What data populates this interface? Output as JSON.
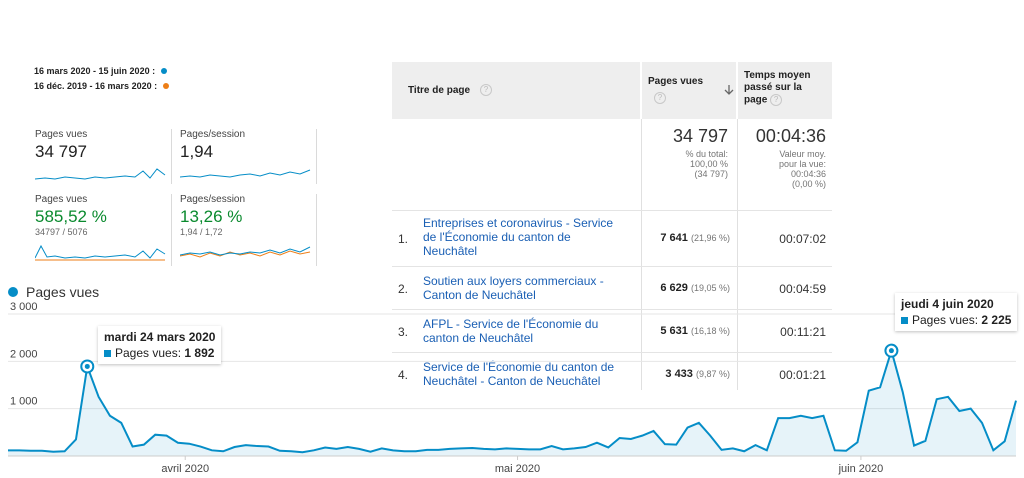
{
  "legend": {
    "range_current": "16 mars 2020 - 15 juin 2020 :",
    "range_previous": "16 déc. 2019 - 16 mars 2020 :",
    "color_current": "#058dc7",
    "color_previous": "#ed7e17"
  },
  "metrics": [
    {
      "label": "Pages vues",
      "value": "34 797",
      "sub": ""
    },
    {
      "label": "Pages/session",
      "value": "1,94",
      "sub": ""
    },
    {
      "label": "Pages vues",
      "value": "585,52 %",
      "sub": "34797 / 5076"
    },
    {
      "label": "Pages/session",
      "value": "13,26 %",
      "sub": "1,94 / 1,72"
    }
  ],
  "table": {
    "col_title": "Titre de page",
    "col_pageviews": "Pages vues",
    "col_time_line1": "Temps moyen",
    "col_time_line2": "passé sur la",
    "col_time_line3": "page",
    "sort_icon": "arrow-down-icon",
    "help_icon": "?",
    "totals": {
      "pageviews": "34 797",
      "pv_sub1": "% du total:",
      "pv_sub2": "100,00 %",
      "pv_sub3": "(34 797)",
      "time": "00:04:36",
      "time_sub1": "Valeur moy.",
      "time_sub2": "pour la vue:",
      "time_sub3": "00:04:36",
      "time_sub4": "(0,00 %)"
    },
    "rows": [
      {
        "n": "1.",
        "title_l1": "Entreprises et coronavirus - Service",
        "title_l2": "de l'Économie du canton de",
        "title_l3": "Neuchâtel",
        "views": "7 641",
        "pct": "(21,96 %)",
        "time": "00:07:02"
      },
      {
        "n": "2.",
        "title_l1": "Soutien aux loyers commerciaux -",
        "title_l2": "Canton de Neuchâtel",
        "title_l3": "",
        "views": "6 629",
        "pct": "(19,05 %)",
        "time": "00:04:59"
      },
      {
        "n": "3.",
        "title_l1": "AFPL - Service de l'Économie du",
        "title_l2": "canton de Neuchâtel",
        "title_l3": "",
        "views": "5 631",
        "pct": "(16,18 %)",
        "time": "00:11:21"
      },
      {
        "n": "4.",
        "title_l1": "Service de l'Économie du canton de",
        "title_l2": "Neuchâtel - Canton de Neuchâtel",
        "title_l3": "",
        "views": "3 433",
        "pct": "(9,87 %)",
        "time": "00:01:21"
      }
    ]
  },
  "chart_data": {
    "type": "area",
    "title": "",
    "series_label": "Pages vues",
    "color": "#058dc7",
    "ylim": [
      0,
      3000
    ],
    "yticks": [
      "3 000",
      "2 000",
      "1 000"
    ],
    "ytick_values": [
      3000,
      2000,
      1000
    ],
    "xticks": [
      "avril 2020",
      "mai 2020",
      "juin 2020"
    ],
    "xtick_dates": [
      "2020-04-01",
      "2020-05-01",
      "2020-06-01"
    ],
    "x_start": "2020-03-16",
    "x_end": "2020-06-15",
    "grid": true,
    "values": [
      120,
      120,
      110,
      110,
      90,
      100,
      350,
      1892,
      1250,
      850,
      700,
      200,
      240,
      450,
      430,
      280,
      260,
      200,
      120,
      100,
      190,
      230,
      210,
      200,
      110,
      100,
      80,
      120,
      180,
      150,
      190,
      150,
      90,
      160,
      120,
      100,
      100,
      130,
      130,
      150,
      160,
      170,
      150,
      140,
      160,
      150,
      140,
      140,
      210,
      140,
      160,
      190,
      280,
      180,
      380,
      360,
      430,
      530,
      250,
      240,
      600,
      700,
      430,
      130,
      160,
      100,
      230,
      120,
      800,
      800,
      850,
      800,
      850,
      120,
      110,
      290,
      1380,
      1450,
      2225,
      1350,
      220,
      320,
      1200,
      1250,
      950,
      1000,
      700,
      120,
      310,
      1170
    ],
    "tooltips": [
      {
        "title": "mardi 24 mars 2020",
        "label": "Pages vues:",
        "value": "1 892"
      },
      {
        "title": "jeudi 4 juin 2020",
        "label": "Pages vues:",
        "value": "2 225"
      }
    ]
  }
}
